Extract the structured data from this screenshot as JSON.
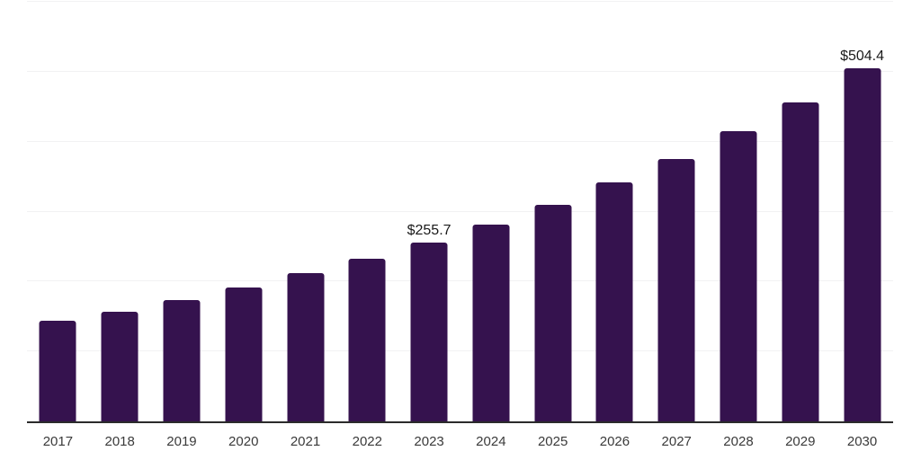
{
  "chart_data": {
    "type": "bar",
    "title": "",
    "xlabel": "",
    "ylabel": "",
    "categories": [
      "2017",
      "2018",
      "2019",
      "2020",
      "2021",
      "2022",
      "2023",
      "2024",
      "2025",
      "2026",
      "2027",
      "2028",
      "2029",
      "2030"
    ],
    "values": [
      144,
      157,
      174,
      192,
      212,
      233,
      255.7,
      281,
      310,
      342,
      375,
      415,
      456,
      504.4
    ],
    "point_labels": {
      "2023": "$255.7",
      "2030": "$504.4"
    },
    "ylim": [
      0,
      600
    ],
    "ytick_interval": 100,
    "ytick_labels_visible": false,
    "grid": true,
    "legend": false,
    "bar_color": "#35124E",
    "grid_color": "#f2f2f3",
    "axis_line_color": "#2b2b2b",
    "value_label_color": "#1a1a1a",
    "tick_label_color": "#3a3a3a",
    "background_color": "#ffffff"
  }
}
